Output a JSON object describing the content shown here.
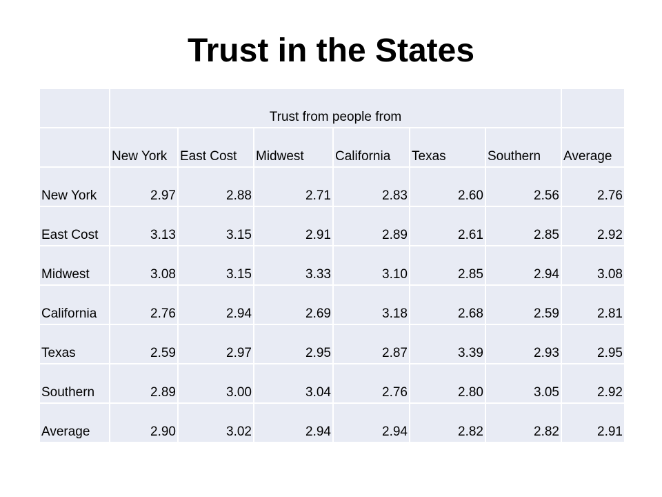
{
  "title": "Trust in the States",
  "table": {
    "group_header": "Trust from people from",
    "columns": [
      "New York",
      "East Cost",
      "Midwest",
      "California",
      "Texas",
      "Southern",
      "Average"
    ],
    "rows": [
      {
        "label": "New York",
        "values": [
          "2.97",
          "2.88",
          "2.71",
          "2.83",
          "2.60",
          "2.56",
          "2.76"
        ]
      },
      {
        "label": "East Cost",
        "values": [
          "3.13",
          "3.15",
          "2.91",
          "2.89",
          "2.61",
          "2.85",
          "2.92"
        ]
      },
      {
        "label": "Midwest",
        "values": [
          "3.08",
          "3.15",
          "3.33",
          "3.10",
          "2.85",
          "2.94",
          "3.08"
        ]
      },
      {
        "label": "California",
        "values": [
          "2.76",
          "2.94",
          "2.69",
          "3.18",
          "2.68",
          "2.59",
          "2.81"
        ]
      },
      {
        "label": "Texas",
        "values": [
          "2.59",
          "2.97",
          "2.95",
          "2.87",
          "3.39",
          "2.93",
          "2.95"
        ]
      },
      {
        "label": "Southern",
        "values": [
          "2.89",
          "3.00",
          "3.04",
          "2.76",
          "2.80",
          "3.05",
          "2.92"
        ]
      },
      {
        "label": "Average",
        "values": [
          "2.90",
          "3.02",
          "2.94",
          "2.94",
          "2.82",
          "2.82",
          "2.91"
        ]
      }
    ]
  },
  "colors": {
    "cell_background": "#e8ebf4",
    "text": "#000000"
  }
}
